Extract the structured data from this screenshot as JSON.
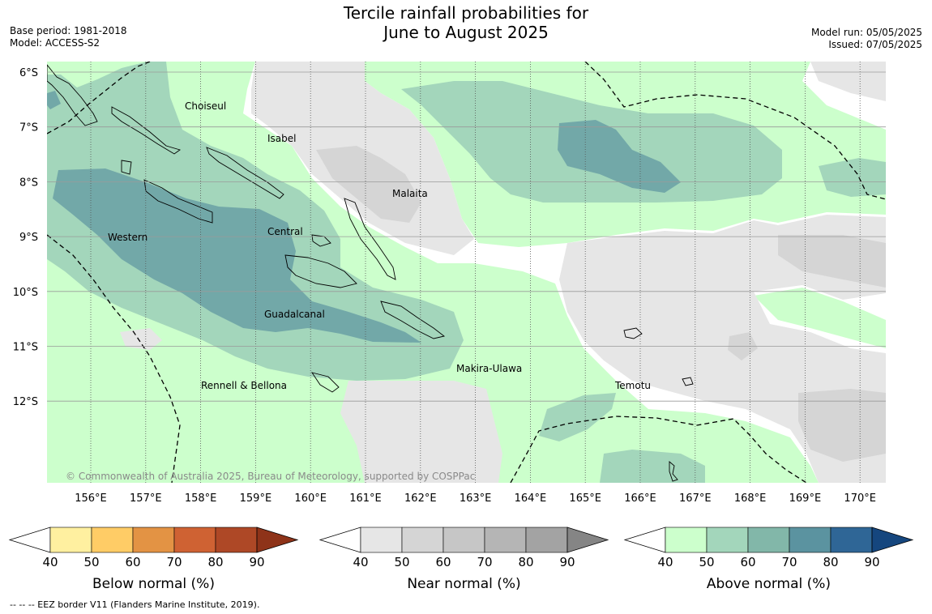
{
  "header": {
    "title_line1": "Tercile rainfall probabilities for",
    "title_line2": "June to August 2025",
    "base_period": "Base period: 1981-2018",
    "model": "Model: ACCESS-S2",
    "model_run": "Model run: 05/05/2025",
    "issued": "Issued: 07/05/2025"
  },
  "map": {
    "lat_labels": [
      "6°S",
      "7°S",
      "8°S",
      "9°S",
      "10°S",
      "11°S",
      "12°S"
    ],
    "lon_labels": [
      "156°E",
      "157°E",
      "158°E",
      "159°E",
      "160°E",
      "161°E",
      "162°E",
      "163°E",
      "164°E",
      "165°E",
      "166°E",
      "167°E",
      "168°E",
      "169°E",
      "170°E"
    ],
    "regions": [
      "Choiseul",
      "Isabel",
      "Malaita",
      "Western",
      "Central",
      "Guadalcanal",
      "Makira-Ulawa",
      "Temotu",
      "Rennell & Bellona"
    ],
    "copyright": "© Commonwealth of Australia 2025, Bureau of Meteorology, supported by COSPPac"
  },
  "colorbars": [
    {
      "label": "Below normal (%)",
      "ticks": [
        "40",
        "50",
        "60",
        "70",
        "80",
        "90"
      ],
      "colors": [
        "#fff0a0",
        "#ffcc66",
        "#e39344",
        "#cf6233",
        "#ae4826",
        "#8e3319"
      ]
    },
    {
      "label": "Near normal (%)",
      "ticks": [
        "40",
        "50",
        "60",
        "70",
        "80",
        "90"
      ],
      "colors": [
        "#e6e6e6",
        "#d5d5d5",
        "#c6c6c6",
        "#b5b5b5",
        "#a3a3a3",
        "#858585"
      ]
    },
    {
      "label": "Above normal (%)",
      "ticks": [
        "40",
        "50",
        "60",
        "70",
        "80",
        "90"
      ],
      "colors": [
        "#ccffcc",
        "#a3d6bb",
        "#82b7a9",
        "#5b93a0",
        "#2f6696",
        "#15467e"
      ]
    }
  ],
  "footer": "--  --  -- EEZ border V11 (Flanders Marine Institute, 2019)."
}
